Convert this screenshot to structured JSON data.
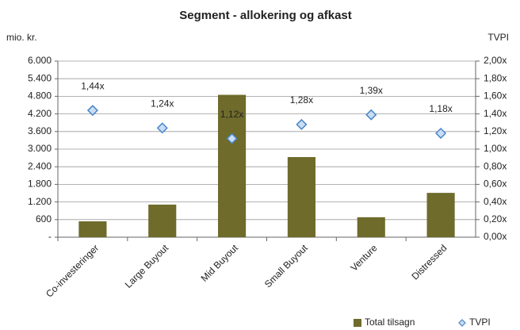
{
  "chart_data": {
    "type": "bar",
    "title": "Segment - allokering og afkast",
    "y_label": "mio. kr.",
    "y2_label": "TVPI",
    "categories": [
      "Co-investeringer",
      "Large Buyout",
      "Mid Buyout",
      "Small Buyout",
      "Venture",
      "Distressed"
    ],
    "series": [
      {
        "name": "Total tilsagn",
        "type": "bar",
        "color": "#6e6b2b",
        "values": [
          540,
          1110,
          4850,
          2730,
          680,
          1510
        ]
      },
      {
        "name": "TVPI",
        "type": "scatter",
        "axis": "y2",
        "color": "#4a86c8",
        "values": [
          1.44,
          1.24,
          1.12,
          1.28,
          1.39,
          1.18
        ],
        "value_labels": [
          "1,44x",
          "1,24x",
          "1,12x",
          "1,28x",
          "1,39x",
          "1,18x"
        ]
      }
    ],
    "ylim": [
      0,
      6000
    ],
    "yticks": [
      {
        "value": 0,
        "label": "-"
      },
      600,
      {
        "value": 1200,
        "label": "1.200"
      },
      {
        "value": 1800,
        "label": "1.800"
      },
      {
        "value": 2400,
        "label": "2.400"
      },
      {
        "value": 3000,
        "label": "3.000"
      },
      {
        "value": 3600,
        "label": "3.600"
      },
      {
        "value": 4200,
        "label": "4.200"
      },
      {
        "value": 4800,
        "label": "4.800"
      },
      {
        "value": 5400,
        "label": "5.400"
      },
      {
        "value": 6000,
        "label": "6.000"
      }
    ],
    "y2lim": [
      0,
      2
    ],
    "y2ticks": [
      {
        "value": 0,
        "label": "0,00x"
      },
      {
        "value": 0.2,
        "label": "0,20x"
      },
      {
        "value": 0.4,
        "label": "0,40x"
      },
      {
        "value": 0.6,
        "label": "0,60x"
      },
      {
        "value": 0.8,
        "label": "0,80x"
      },
      {
        "value": 1,
        "label": "1,00x"
      },
      {
        "value": 1.2,
        "label": "1,20x"
      },
      {
        "value": 1.4,
        "label": "1,40x"
      },
      {
        "value": 1.6,
        "label": "1,60x"
      },
      {
        "value": 1.8,
        "label": "1,80x"
      },
      {
        "value": 2,
        "label": "2,00x"
      }
    ],
    "grid": true,
    "legend": "bottom-right"
  }
}
